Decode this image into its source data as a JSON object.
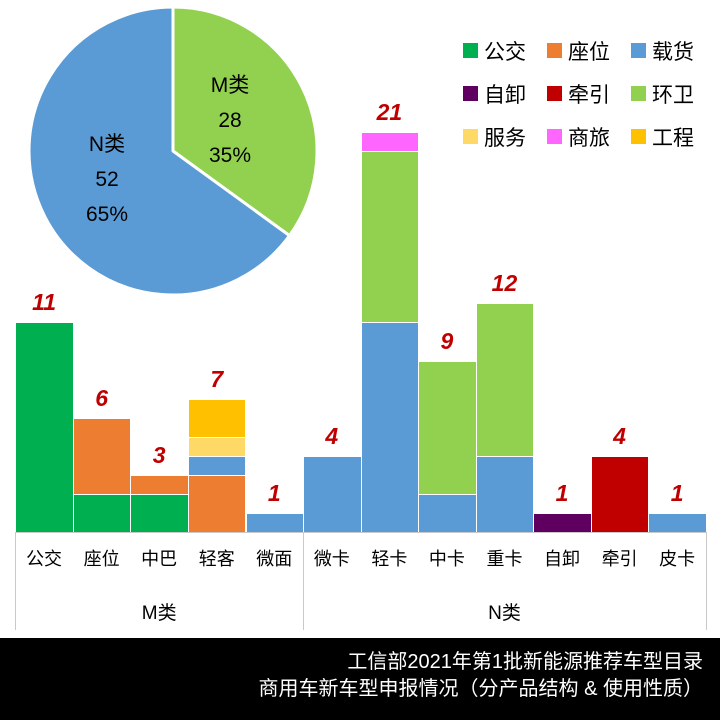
{
  "chart_data": [
    {
      "type": "pie",
      "title": "",
      "slices": [
        {
          "label": "M类",
          "value": 28,
          "pct": "35%",
          "color": "#92D050"
        },
        {
          "label": "N类",
          "value": 52,
          "pct": "65%",
          "color": "#5B9BD5"
        }
      ],
      "start_angle_deg": 0,
      "direction": "clockwise"
    },
    {
      "type": "bar",
      "stacked": true,
      "categories": [
        "公交",
        "座位",
        "中巴",
        "轻客",
        "微面",
        "微卡",
        "轻卡",
        "中卡",
        "重卡",
        "自卸",
        "牵引",
        "皮卡"
      ],
      "totals": [
        11,
        6,
        3,
        7,
        1,
        4,
        21,
        9,
        12,
        1,
        4,
        1
      ],
      "groups": [
        {
          "label": "M类",
          "from": 0,
          "to": 4
        },
        {
          "label": "N类",
          "from": 5,
          "to": 11
        }
      ],
      "series": [
        {
          "name": "公交",
          "color": "#00B050",
          "values": [
            11,
            2,
            2,
            0,
            0,
            0,
            0,
            0,
            0,
            0,
            0,
            0
          ]
        },
        {
          "name": "座位",
          "color": "#ED7D31",
          "values": [
            0,
            4,
            1,
            3,
            0,
            0,
            0,
            0,
            0,
            0,
            0,
            0
          ]
        },
        {
          "name": "载货",
          "color": "#5B9BD5",
          "values": [
            0,
            0,
            0,
            1,
            1,
            4,
            11,
            2,
            4,
            0,
            0,
            1
          ]
        },
        {
          "name": "自卸",
          "color": "#5F0060",
          "values": [
            0,
            0,
            0,
            0,
            0,
            0,
            0,
            0,
            0,
            1,
            0,
            0
          ]
        },
        {
          "name": "牵引",
          "color": "#C00000",
          "values": [
            0,
            0,
            0,
            0,
            0,
            0,
            0,
            0,
            0,
            0,
            4,
            0
          ]
        },
        {
          "name": "环卫",
          "color": "#92D050",
          "values": [
            0,
            0,
            0,
            0,
            0,
            0,
            9,
            7,
            8,
            0,
            0,
            0
          ]
        },
        {
          "name": "服务",
          "color": "#FFD966",
          "values": [
            0,
            0,
            0,
            1,
            0,
            0,
            0,
            0,
            0,
            0,
            0,
            0
          ]
        },
        {
          "name": "商旅",
          "color": "#FF66FF",
          "values": [
            0,
            0,
            0,
            0,
            0,
            0,
            1,
            0,
            0,
            0,
            0,
            0
          ]
        },
        {
          "name": "工程",
          "color": "#FFC000",
          "values": [
            0,
            0,
            0,
            2,
            0,
            0,
            0,
            0,
            0,
            0,
            0,
            0
          ]
        }
      ],
      "ylim": [
        0,
        22
      ],
      "grid": false,
      "value_label_color": "#C00000"
    }
  ],
  "legend": {
    "items": [
      {
        "label": "公交",
        "color": "#00B050"
      },
      {
        "label": "座位",
        "color": "#ED7D31"
      },
      {
        "label": "载货",
        "color": "#5B9BD5"
      },
      {
        "label": "自卸",
        "color": "#5F0060"
      },
      {
        "label": "牵引",
        "color": "#C00000"
      },
      {
        "label": "环卫",
        "color": "#92D050"
      },
      {
        "label": "服务",
        "color": "#FFD966"
      },
      {
        "label": "商旅",
        "color": "#FF66FF"
      },
      {
        "label": "工程",
        "color": "#FFC000"
      }
    ]
  },
  "footer": {
    "line1": "工信部2021年第1批新能源推荐车型目录",
    "line2": "商用车新车型申报情况（分产品结构 & 使用性质）",
    "bg": "#000000",
    "text_color": "#FFFFFF"
  },
  "style": {
    "axis_line_color": "#C9C9C9",
    "pie_stroke": "#FFFFFF"
  }
}
